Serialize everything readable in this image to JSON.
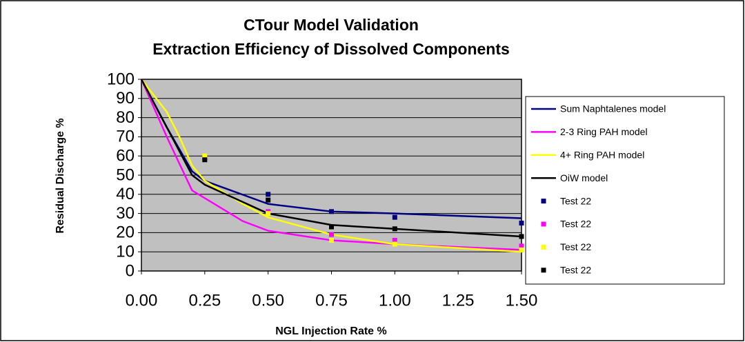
{
  "chart_data": {
    "type": "line",
    "title": [
      "CTour Model Validation",
      "Extraction Efficiency of Dissolved Components"
    ],
    "x_label": "NGL Injection Rate %",
    "y_label": "Residual Discharge %",
    "xlim": [
      0,
      1.5
    ],
    "xticks": [
      {
        "value": 0,
        "label": "0.00"
      },
      {
        "value": 0.25,
        "label": "0.25"
      },
      {
        "value": 0.5,
        "label": "0.50"
      },
      {
        "value": 0.75,
        "label": "0.75"
      },
      {
        "value": 1,
        "label": "1.00"
      },
      {
        "value": 1.25,
        "label": "1.25"
      },
      {
        "value": 1.5,
        "label": "1.50"
      }
    ],
    "ylim": [
      0,
      100
    ],
    "yticks": [
      0,
      10,
      20,
      30,
      40,
      50,
      60,
      70,
      80,
      90,
      100
    ],
    "grid": true,
    "legend": "right",
    "series": [
      {
        "name": "Sum Naphtalenes model",
        "color": "#000080",
        "mode": "line",
        "x": [
          0,
          0.1,
          0.2,
          0.25,
          0.5,
          0.75,
          1.0,
          1.5
        ],
        "values": [
          100,
          75,
          52,
          47,
          35,
          31,
          30,
          27.5
        ]
      },
      {
        "name": "2-3 Ring PAH model",
        "color": "#ff00ff",
        "mode": "line",
        "x": [
          0,
          0.1,
          0.2,
          0.25,
          0.4,
          0.5,
          0.75,
          1.0,
          1.5
        ],
        "values": [
          100,
          70,
          42,
          38,
          26,
          21,
          16,
          14,
          11
        ]
      },
      {
        "name": "4+ Ring PAH model",
        "color": "#ffff00",
        "mode": "line",
        "x": [
          0,
          0.1,
          0.15,
          0.2,
          0.25,
          0.4,
          0.5,
          0.75,
          1.0,
          1.5
        ],
        "values": [
          100,
          83,
          70,
          55,
          47,
          35,
          28,
          19,
          14,
          10
        ]
      },
      {
        "name": "OiW model",
        "color": "#000000",
        "mode": "line",
        "x": [
          0,
          0.1,
          0.2,
          0.25,
          0.5,
          0.75,
          1.0,
          1.5
        ],
        "values": [
          100,
          75,
          50,
          45,
          30,
          24,
          22,
          18
        ]
      },
      {
        "name": "Test 22",
        "color": "#000080",
        "mode": "marker",
        "x": [
          0.25,
          0.5,
          0.75,
          1.0,
          1.5
        ],
        "values": [
          59,
          40,
          31,
          28,
          25
        ]
      },
      {
        "name": "Test 22",
        "color": "#ff00ff",
        "mode": "marker",
        "x": [
          0.25,
          0.5,
          0.75,
          1.0,
          1.5
        ],
        "values": [
          59,
          31,
          19,
          16,
          13
        ]
      },
      {
        "name": "Test 22",
        "color": "#ffff00",
        "mode": "marker",
        "x": [
          0.25,
          0.5,
          0.75,
          1.0,
          1.5
        ],
        "values": [
          60,
          30,
          16,
          14,
          11
        ]
      },
      {
        "name": "Test 22",
        "color": "#000000",
        "mode": "marker",
        "x": [
          0.25,
          0.5,
          0.75,
          1.0,
          1.5
        ],
        "values": [
          58,
          37,
          23,
          22,
          18
        ]
      }
    ]
  }
}
